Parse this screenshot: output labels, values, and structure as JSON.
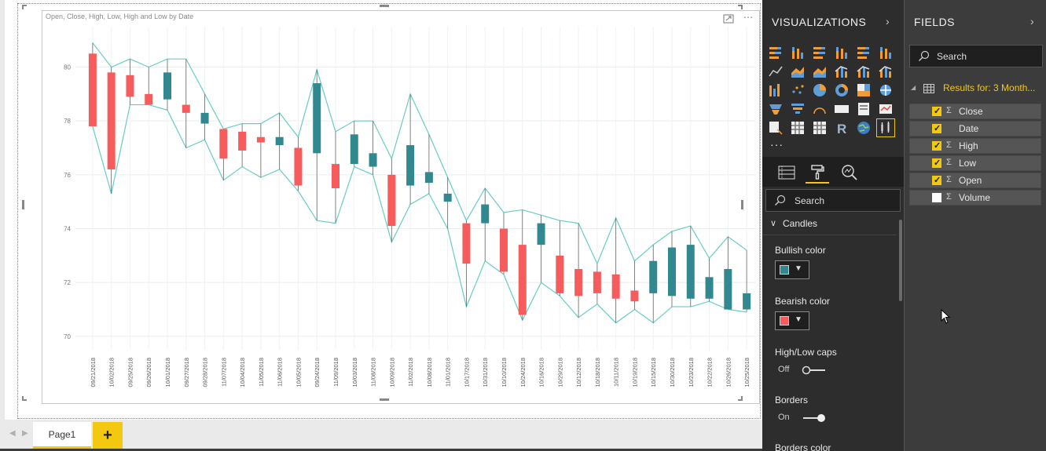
{
  "visual": {
    "title": "Open, Close, High, Low, High and Low by Date",
    "focus_icon": "focus-mode-icon",
    "more_icon": "ellipsis-icon"
  },
  "chart_data": {
    "type": "candlestick",
    "y_ticks": [
      70,
      72,
      74,
      76,
      78,
      80
    ],
    "ylim": [
      69.5,
      81.5
    ],
    "bullish_color": "#31888f",
    "bearish_color": "#f65c5c",
    "band_color": "#66cdc3",
    "categories": [
      "09/21/2018",
      "10/02/2018",
      "09/25/2018",
      "09/26/2018",
      "10/01/2018",
      "09/27/2018",
      "09/28/2018",
      "11/07/2018",
      "10/04/2018",
      "11/05/2018",
      "11/06/2018",
      "10/05/2018",
      "09/24/2018",
      "11/09/2018",
      "10/03/2018",
      "11/08/2018",
      "10/09/2018",
      "11/02/2018",
      "10/08/2018",
      "11/01/2018",
      "10/17/2018",
      "10/31/2018",
      "10/10/2018",
      "10/24/2018",
      "10/16/2018",
      "10/29/2018",
      "10/12/2018",
      "10/18/2018",
      "10/11/2018",
      "10/19/2018",
      "10/15/2018",
      "10/30/2018",
      "10/23/2018",
      "10/22/2018",
      "10/26/2018",
      "10/25/2018"
    ],
    "open": [
      80.5,
      79.8,
      79.7,
      79.0,
      78.8,
      78.6,
      77.9,
      77.7,
      77.6,
      77.4,
      77.1,
      77.0,
      76.8,
      76.4,
      76.4,
      76.3,
      76.0,
      75.6,
      75.7,
      75.0,
      74.2,
      74.2,
      74.0,
      73.4,
      73.4,
      73.0,
      72.5,
      72.4,
      72.3,
      71.7,
      71.6,
      71.5,
      71.4,
      71.4,
      71.0,
      71.0
    ],
    "close": [
      77.8,
      76.2,
      78.9,
      78.6,
      79.8,
      78.3,
      78.3,
      76.6,
      76.9,
      77.2,
      77.4,
      75.6,
      79.4,
      75.5,
      77.5,
      76.8,
      74.1,
      77.1,
      76.1,
      75.3,
      72.7,
      74.9,
      72.4,
      70.8,
      74.2,
      71.6,
      71.5,
      71.6,
      71.4,
      71.3,
      72.8,
      73.3,
      73.4,
      72.2,
      72.5,
      71.6
    ],
    "high": [
      80.9,
      80.0,
      80.3,
      80.0,
      80.3,
      80.3,
      79.0,
      77.7,
      77.9,
      77.9,
      78.3,
      77.4,
      79.9,
      77.6,
      78.0,
      78.0,
      76.6,
      79.0,
      77.5,
      75.9,
      74.3,
      75.5,
      74.6,
      74.7,
      74.5,
      74.3,
      74.2,
      72.7,
      74.4,
      72.8,
      73.4,
      73.9,
      74.1,
      72.9,
      73.7,
      73.2
    ],
    "low": [
      77.8,
      75.3,
      78.6,
      78.6,
      78.4,
      77.0,
      77.3,
      75.8,
      76.3,
      75.9,
      76.2,
      75.4,
      74.3,
      74.2,
      76.3,
      76.0,
      73.5,
      74.9,
      75.3,
      74.0,
      71.1,
      72.8,
      72.3,
      70.6,
      72.0,
      71.5,
      70.7,
      71.2,
      70.5,
      71.0,
      70.5,
      71.1,
      71.1,
      71.3,
      71.0,
      70.9
    ]
  },
  "tabs": {
    "page1": "Page1",
    "add": "+"
  },
  "viz_pane": {
    "header": "VISUALIZATIONS",
    "search_placeholder": "Search",
    "more": "···",
    "section": "Candles",
    "bullish_label": "Bullish color",
    "bullish_swatch": "#31888f",
    "bearish_label": "Bearish color",
    "bearish_swatch": "#f65c5c",
    "caps_label": "High/Low caps",
    "caps_state": "Off",
    "borders_label": "Borders",
    "borders_state": "On",
    "borders_color_label": "Borders color",
    "gallery": [
      "stacked-bar-icon",
      "stacked-column-icon",
      "clustered-bar-icon",
      "clustered-column-icon",
      "100-bar-icon",
      "100-column-icon",
      "line-chart-icon",
      "area-chart-icon",
      "stacked-area-icon",
      "line-column-icon",
      "line-column-2-icon",
      "ribbon-icon",
      "waterfall-icon",
      "scatter-icon",
      "pie-icon",
      "donut-icon",
      "treemap-icon",
      "map-icon",
      "filled-map-icon",
      "funnel-icon",
      "gauge-icon",
      "card-icon",
      "multirow-card-icon",
      "kpi-icon",
      "slicer-icon",
      "table-icon",
      "matrix-icon",
      "r-visual-icon",
      "globe-icon",
      "candlestick-icon"
    ]
  },
  "fields_pane": {
    "header": "FIELDS",
    "search_placeholder": "Search",
    "table_name": "Results for: 3 Month...",
    "fields": [
      {
        "name": "Close",
        "checked": true,
        "sigma": true
      },
      {
        "name": "Date",
        "checked": true,
        "sigma": false
      },
      {
        "name": "High",
        "checked": true,
        "sigma": true
      },
      {
        "name": "Low",
        "checked": true,
        "sigma": true
      },
      {
        "name": "Open",
        "checked": true,
        "sigma": true
      },
      {
        "name": "Volume",
        "checked": false,
        "sigma": true
      }
    ]
  }
}
